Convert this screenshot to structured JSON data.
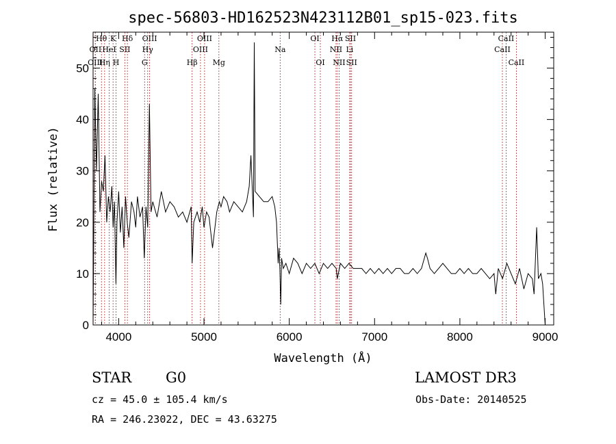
{
  "chart_data": {
    "type": "line",
    "title": "spec-56803-HD162523N423112B01_sp15-023.fits",
    "xlabel": "Wavelength (Å)",
    "ylabel": "Flux (relative)",
    "xlim": [
      3700,
      9100
    ],
    "ylim": [
      0,
      57
    ],
    "x_ticks": [
      4000,
      5000,
      6000,
      7000,
      8000,
      9000
    ],
    "y_ticks": [
      0,
      10,
      20,
      30,
      40,
      50
    ],
    "line_color": "#000000",
    "marker_color": "#b03030",
    "series": [
      {
        "x": [
          3700,
          3720,
          3740,
          3760,
          3780,
          3800,
          3820,
          3840,
          3860,
          3880,
          3900,
          3920,
          3935,
          3950,
          3968,
          3980,
          4000,
          4020,
          4040,
          4060,
          4080,
          4100,
          4120,
          4150,
          4180,
          4200,
          4220,
          4250,
          4280,
          4300,
          4320,
          4340,
          4360,
          4380,
          4400,
          4450,
          4500,
          4550,
          4600,
          4650,
          4700,
          4750,
          4800,
          4850,
          4861,
          4880,
          4920,
          4950,
          4980,
          5000,
          5030,
          5060,
          5100,
          5150,
          5180,
          5200,
          5230,
          5270,
          5300,
          5350,
          5400,
          5450,
          5500,
          5530,
          5550,
          5580,
          5590,
          5600,
          5650,
          5700,
          5750,
          5800,
          5830,
          5850,
          5870,
          5880,
          5890,
          5895,
          5900,
          5910,
          5930,
          5960,
          6000,
          6050,
          6100,
          6150,
          6200,
          6250,
          6300,
          6350,
          6400,
          6450,
          6500,
          6550,
          6563,
          6600,
          6650,
          6700,
          6750,
          6800,
          6850,
          6900,
          6950,
          7000,
          7050,
          7100,
          7150,
          7200,
          7250,
          7300,
          7350,
          7400,
          7450,
          7500,
          7550,
          7600,
          7620,
          7650,
          7700,
          7750,
          7800,
          7850,
          7900,
          7950,
          8000,
          8050,
          8100,
          8150,
          8200,
          8250,
          8300,
          8350,
          8400,
          8420,
          8450,
          8500,
          8550,
          8600,
          8650,
          8700,
          8750,
          8800,
          8850,
          8870,
          8900,
          8920,
          8950,
          8970,
          9000
        ],
        "values": [
          0,
          46,
          30,
          45,
          22,
          28,
          26,
          33,
          20,
          25,
          22,
          27,
          19,
          24,
          8,
          20,
          26,
          18,
          23,
          15,
          25,
          20,
          17,
          24,
          22,
          19,
          25,
          21,
          23,
          13,
          23,
          19,
          43,
          22,
          24,
          21,
          26,
          22,
          24,
          23,
          21,
          22,
          20,
          23,
          12,
          20,
          22,
          20,
          23,
          19,
          22,
          21,
          15,
          22,
          24,
          23,
          25,
          24,
          22,
          24,
          23,
          22,
          24,
          27,
          33,
          21,
          55,
          26,
          25,
          24,
          24,
          25,
          23,
          20,
          12,
          15,
          11,
          7,
          4,
          13,
          11,
          12,
          10,
          13,
          12,
          10,
          12,
          11,
          12,
          10,
          12,
          11,
          12,
          11,
          9,
          12,
          11,
          12,
          11,
          11,
          11,
          10,
          11,
          10,
          11,
          10,
          11,
          10,
          11,
          11,
          10,
          10,
          11,
          10,
          11,
          14,
          13,
          11,
          10,
          11,
          12,
          11,
          10,
          10,
          11,
          10,
          11,
          10,
          10,
          11,
          10,
          9,
          10,
          6,
          11,
          9,
          12,
          10,
          8,
          11,
          7,
          10,
          9,
          6,
          19,
          9,
          10,
          8,
          0
        ]
      }
    ],
    "spectral_lines": [
      {
        "label": "Hθ",
        "wave": 3798,
        "row": 1
      },
      {
        "label": "OII",
        "wave": 3727,
        "row": 2
      },
      {
        "label": "OIII",
        "wave": 3725,
        "row": 3
      },
      {
        "label": "K",
        "wave": 3934,
        "row": 1
      },
      {
        "label": "HeI",
        "wave": 3889,
        "row": 2
      },
      {
        "label": "Hη",
        "wave": 3835,
        "row": 3
      },
      {
        "label": "H",
        "wave": 3969,
        "row": 3
      },
      {
        "label": "SII",
        "wave": 4072,
        "row": 2
      },
      {
        "label": "Hδ",
        "wave": 4102,
        "row": 1
      },
      {
        "label": "OIII",
        "wave": 4363,
        "row": 1
      },
      {
        "label": "Hγ",
        "wave": 4340,
        "row": 2
      },
      {
        "label": "G",
        "wave": 4304,
        "row": 3
      },
      {
        "label": "Hβ",
        "wave": 4861,
        "row": 3
      },
      {
        "label": "OIII",
        "wave": 5007,
        "row": 1
      },
      {
        "label": "OIII",
        "wave": 4959,
        "row": 2
      },
      {
        "label": "Mg",
        "wave": 5175,
        "row": 3
      },
      {
        "label": "Na",
        "wave": 5893,
        "row": 2
      },
      {
        "label": "OI",
        "wave": 6300,
        "row": 1
      },
      {
        "label": "OI",
        "wave": 6364,
        "row": 3
      },
      {
        "label": "Hα",
        "wave": 6563,
        "row": 1
      },
      {
        "label": "NII",
        "wave": 6548,
        "row": 2
      },
      {
        "label": "NII",
        "wave": 6584,
        "row": 3
      },
      {
        "label": "SII",
        "wave": 6717,
        "row": 1
      },
      {
        "label": "Li",
        "wave": 6708,
        "row": 2
      },
      {
        "label": "SII",
        "wave": 6731,
        "row": 3
      },
      {
        "label": "CaII",
        "wave": 8542,
        "row": 1
      },
      {
        "label": "CaII",
        "wave": 8498,
        "row": 2
      },
      {
        "label": "CaII",
        "wave": 8662,
        "row": 3
      }
    ]
  },
  "info": {
    "class": "STAR",
    "subclass": "G0",
    "survey": "LAMOST DR3",
    "cz": "cz = 45.0 ± 105.4 km/s",
    "obs_date": "Obs-Date: 20140525",
    "coords": "RA = 246.23022, DEC =  43.63275"
  }
}
